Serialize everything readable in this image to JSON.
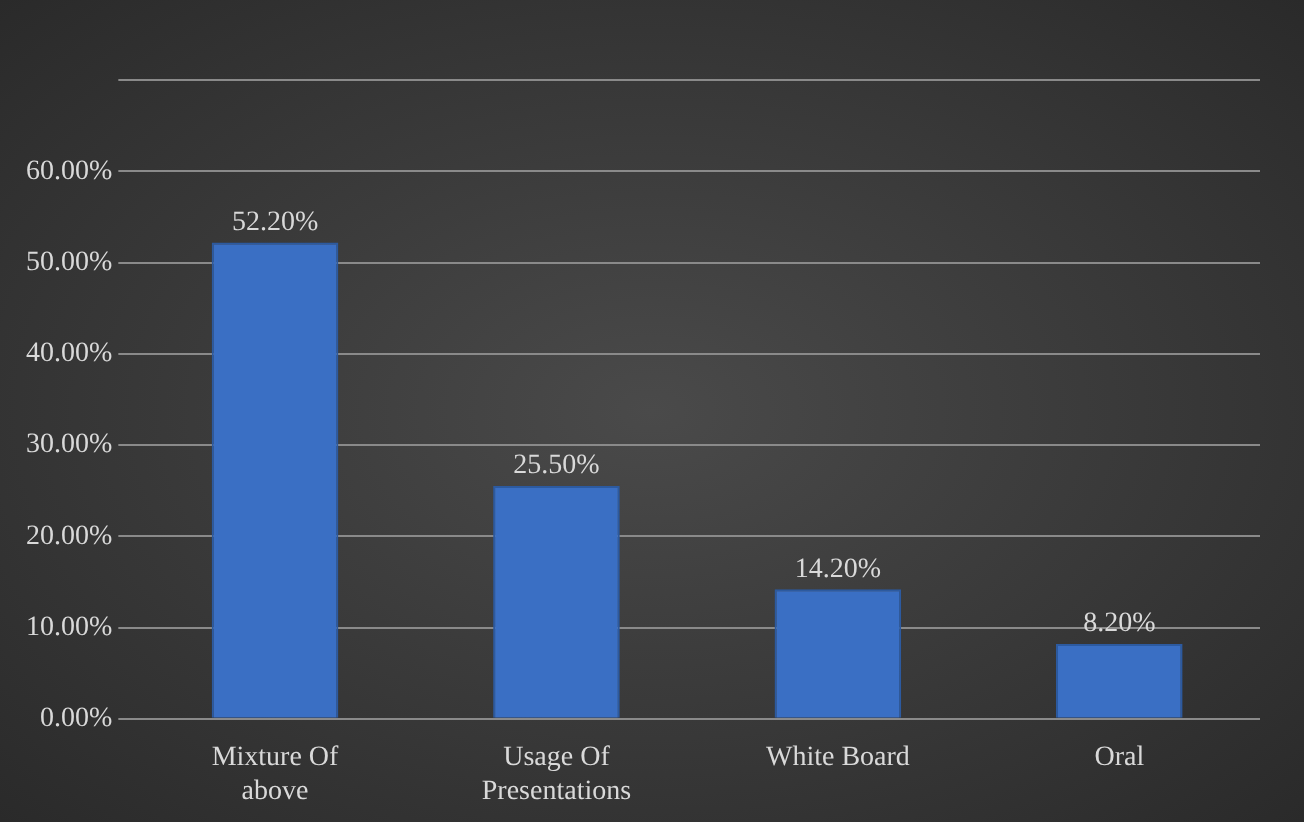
{
  "chart_data": {
    "type": "bar",
    "categories": [
      "Mixture Of above",
      "Usage Of Presentations",
      "White Board",
      "Oral"
    ],
    "values": [
      52.2,
      25.5,
      14.2,
      8.2
    ],
    "value_labels": [
      "52.20%",
      "25.50%",
      "14.20%",
      "8.20%"
    ],
    "color": "#3a6fc4",
    "ylim": [
      0,
      70
    ],
    "yticks": [
      {
        "value": 0,
        "label": "0.00%"
      },
      {
        "value": 10,
        "label": "10.00%"
      },
      {
        "value": 20,
        "label": "20.00%"
      },
      {
        "value": 30,
        "label": "30.00%"
      },
      {
        "value": 40,
        "label": "40.00%"
      },
      {
        "value": 50,
        "label": "50.00%"
      },
      {
        "value": 60,
        "label": "60.00%"
      },
      {
        "value": 70,
        "label": null
      }
    ],
    "grid": "y",
    "legend": false
  }
}
